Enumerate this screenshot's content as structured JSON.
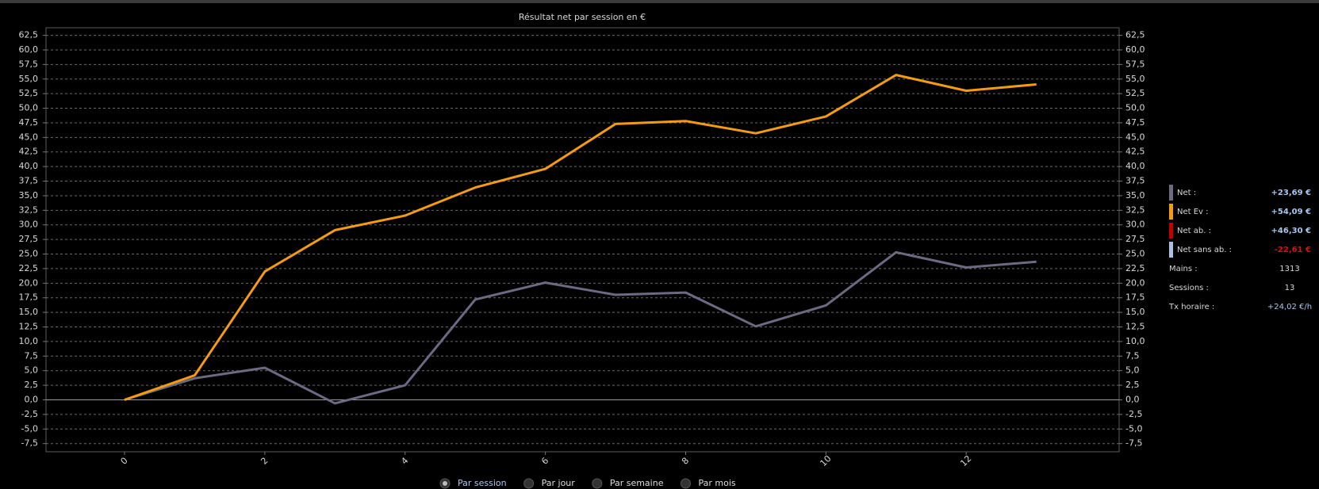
{
  "chart_data": {
    "type": "line",
    "title": "Résultat net par session en €",
    "x": [
      0,
      1,
      2,
      3,
      4,
      5,
      6,
      7,
      8,
      9,
      10,
      11,
      12,
      13
    ],
    "xlim": [
      -1.12,
      14.18
    ],
    "xticks": [
      0,
      2,
      4,
      6,
      8,
      10,
      12
    ],
    "ylim": [
      -8.9,
      63.8
    ],
    "yticks": [
      {
        "value": -7.5,
        "label": "-7,5"
      },
      {
        "value": -5,
        "label": "-5,0"
      },
      {
        "value": -2.5,
        "label": "-2,5"
      },
      {
        "value": 0,
        "label": "0,0"
      },
      {
        "value": 2.5,
        "label": "2,5"
      },
      {
        "value": 5,
        "label": "5,0"
      },
      {
        "value": 7.5,
        "label": "7,5"
      },
      {
        "value": 10,
        "label": "10,0"
      },
      {
        "value": 12.5,
        "label": "12,5"
      },
      {
        "value": 15,
        "label": "15,0"
      },
      {
        "value": 17.5,
        "label": "17,5"
      },
      {
        "value": 20,
        "label": "20,0"
      },
      {
        "value": 22.5,
        "label": "22,5"
      },
      {
        "value": 25,
        "label": "25,0"
      },
      {
        "value": 27.5,
        "label": "27,5"
      },
      {
        "value": 30,
        "label": "30,0"
      },
      {
        "value": 32.5,
        "label": "32,5"
      },
      {
        "value": 35,
        "label": "35,0"
      },
      {
        "value": 37.5,
        "label": "37,5"
      },
      {
        "value": 40,
        "label": "40,0"
      },
      {
        "value": 42.5,
        "label": "42,5"
      },
      {
        "value": 45,
        "label": "45,0"
      },
      {
        "value": 47.5,
        "label": "47,5"
      },
      {
        "value": 50,
        "label": "50,0"
      },
      {
        "value": 52.5,
        "label": "52,5"
      },
      {
        "value": 55,
        "label": "55,0"
      },
      {
        "value": 57.5,
        "label": "57,5"
      },
      {
        "value": 60,
        "label": "60,0"
      },
      {
        "value": 62.5,
        "label": "62,5"
      }
    ],
    "grid": true,
    "series": [
      {
        "name": "Net :",
        "color": "#6c6982",
        "value_label": "+23,69 €",
        "value_color": "#a9c6ee",
        "values": [
          0,
          3.7,
          5.5,
          -0.6,
          2.5,
          17.2,
          20.1,
          18.0,
          18.4,
          12.6,
          16.2,
          25.3,
          22.7,
          23.69
        ]
      },
      {
        "name": "Net Ev :",
        "color": "#f39c12",
        "value_label": "+54,09 €",
        "value_color": "#a9c6ee",
        "values": [
          0,
          4.2,
          22.0,
          29.1,
          31.6,
          36.4,
          39.6,
          47.3,
          47.8,
          45.7,
          48.6,
          55.7,
          53.0,
          54.09
        ]
      }
    ],
    "other_series": [
      {
        "name": "Net ab. :",
        "color": "#c00000",
        "value_label": "+46,30 €",
        "value_color": "#a9c6ee"
      },
      {
        "name": "Net sans ab. :",
        "color": "#a8c4e0",
        "value_label": "-22,61 €",
        "value_color": "#e01010"
      }
    ],
    "stats": [
      {
        "label": "Mains :",
        "value": 1313
      },
      {
        "label": "Sessions :",
        "value": 13
      },
      {
        "label": "Tx horaire :",
        "value": "+24,02 €/h"
      }
    ],
    "options": [
      {
        "label": "Par session",
        "selected": true
      },
      {
        "label": "Par jour",
        "selected": false
      },
      {
        "label": "Par semaine",
        "selected": false
      },
      {
        "label": "Par mois",
        "selected": false
      }
    ]
  }
}
